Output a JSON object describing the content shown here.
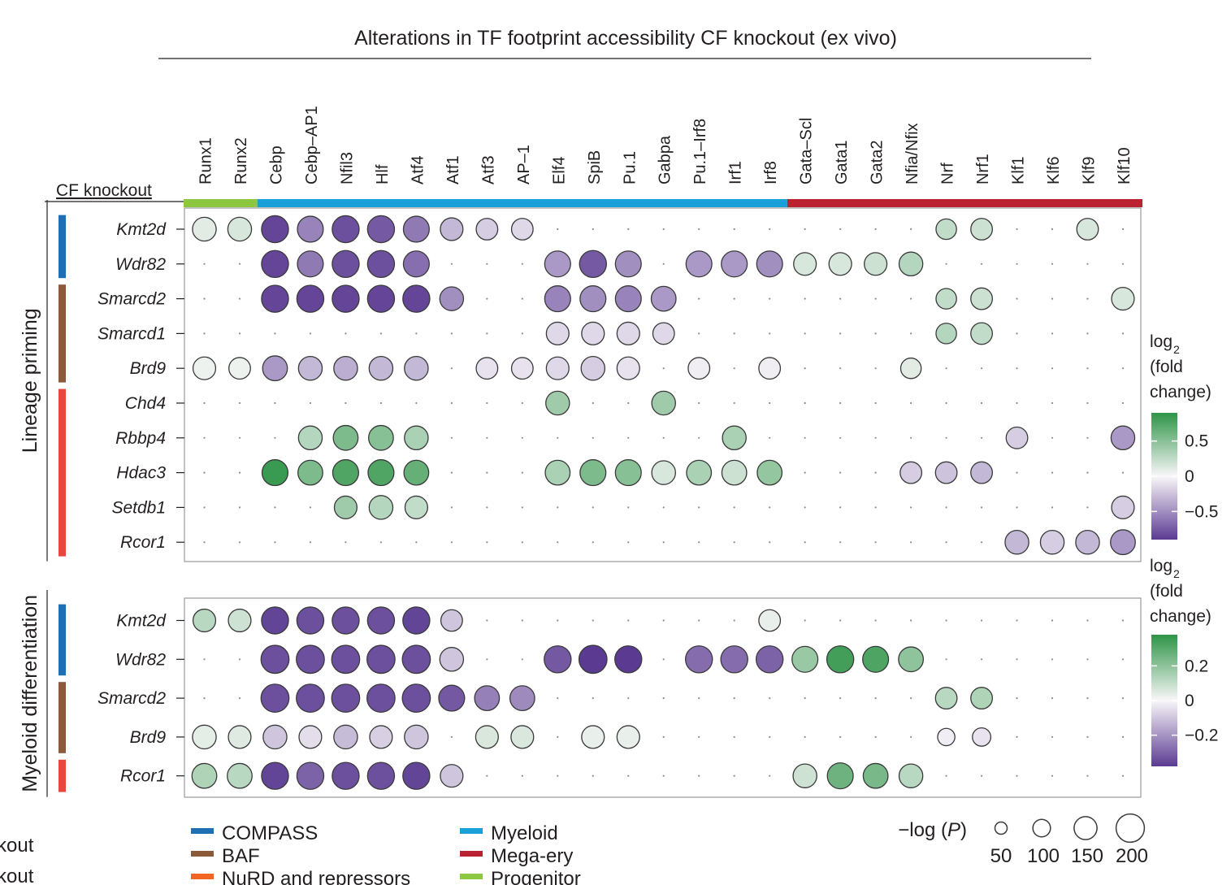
{
  "chart_data": {
    "type": "dot-heatmap",
    "title": "Alterations in TF footprint accessibility CF knockout (ex vivo)",
    "row_header": "CF knockout",
    "columns": [
      "Runx1",
      "Runx2",
      "Cebp",
      "Cebp–AP1",
      "Nfil3",
      "Hlf",
      "Atf4",
      "Atf1",
      "Atf3",
      "AP–1",
      "Elf4",
      "SpiB",
      "Pu.1",
      "Gabpa",
      "Pu.1–Irf8",
      "Irf1",
      "Irf8",
      "Gata–Scl",
      "Gata1",
      "Gata2",
      "Nfia/Nfix",
      "Nrf",
      "Nrf1",
      "Klf1",
      "Klf6",
      "Klf9",
      "Klf10"
    ],
    "column_groups": [
      {
        "name": "Progenitor",
        "count": 2,
        "color": "#8dc63f"
      },
      {
        "name": "Myeloid",
        "count": 15,
        "color": "#1aa0d8"
      },
      {
        "name": "Mega-ery",
        "count": 10,
        "color": "#bb2231"
      }
    ],
    "panels": [
      {
        "name": "Lineage priming",
        "rows": [
          "Kmt2d",
          "Wdr82",
          "Smarcd2",
          "Smarcd1",
          "Brd9",
          "Chd4",
          "Rbbp4",
          "Hdac3",
          "Setdb1",
          "Rcor1"
        ],
        "row_complex": [
          "COMPASS",
          "COMPASS",
          "BAF",
          "BAF",
          "BAF",
          "NuRD and repressors",
          "NuRD and repressors",
          "NuRD and repressors",
          "NuRD and repressors",
          "NuRD and repressors"
        ],
        "colorbar_label": [
          "log",
          "2",
          "(fold",
          "change)"
        ],
        "colorbar_ticks": [
          0.5,
          0,
          -0.5
        ],
        "colorbar_tick_labels": [
          "0.5",
          "0",
          "−0.5"
        ],
        "color_range": [
          -0.9,
          0.9
        ],
        "points": [
          [
            "Kmt2d",
            0,
            0.1,
            150
          ],
          [
            "Kmt2d",
            1,
            0.15,
            150
          ],
          [
            "Kmt2d",
            2,
            -0.85,
            180
          ],
          [
            "Kmt2d",
            3,
            -0.55,
            170
          ],
          [
            "Kmt2d",
            4,
            -0.8,
            180
          ],
          [
            "Kmt2d",
            5,
            -0.75,
            180
          ],
          [
            "Kmt2d",
            6,
            -0.6,
            170
          ],
          [
            "Kmt2d",
            7,
            -0.3,
            140
          ],
          [
            "Kmt2d",
            8,
            -0.2,
            130
          ],
          [
            "Kmt2d",
            9,
            -0.15,
            130
          ],
          [
            "Kmt2d",
            21,
            0.25,
            120
          ],
          [
            "Kmt2d",
            22,
            0.2,
            130
          ],
          [
            "Kmt2d",
            25,
            0.15,
            130
          ],
          [
            "Wdr82",
            2,
            -0.85,
            180
          ],
          [
            "Wdr82",
            3,
            -0.6,
            170
          ],
          [
            "Wdr82",
            4,
            -0.8,
            180
          ],
          [
            "Wdr82",
            5,
            -0.8,
            180
          ],
          [
            "Wdr82",
            6,
            -0.65,
            170
          ],
          [
            "Wdr82",
            10,
            -0.45,
            170
          ],
          [
            "Wdr82",
            11,
            -0.75,
            180
          ],
          [
            "Wdr82",
            12,
            -0.5,
            170
          ],
          [
            "Wdr82",
            14,
            -0.45,
            170
          ],
          [
            "Wdr82",
            15,
            -0.45,
            170
          ],
          [
            "Wdr82",
            16,
            -0.5,
            170
          ],
          [
            "Wdr82",
            17,
            0.15,
            140
          ],
          [
            "Wdr82",
            18,
            0.15,
            140
          ],
          [
            "Wdr82",
            19,
            0.2,
            140
          ],
          [
            "Wdr82",
            20,
            0.3,
            150
          ],
          [
            "Smarcd2",
            2,
            -0.85,
            180
          ],
          [
            "Smarcd2",
            3,
            -0.85,
            180
          ],
          [
            "Smarcd2",
            4,
            -0.85,
            180
          ],
          [
            "Smarcd2",
            5,
            -0.85,
            180
          ],
          [
            "Smarcd2",
            6,
            -0.85,
            180
          ],
          [
            "Smarcd2",
            7,
            -0.5,
            150
          ],
          [
            "Smarcd2",
            10,
            -0.55,
            170
          ],
          [
            "Smarcd2",
            11,
            -0.5,
            170
          ],
          [
            "Smarcd2",
            12,
            -0.55,
            170
          ],
          [
            "Smarcd2",
            13,
            -0.45,
            160
          ],
          [
            "Smarcd2",
            21,
            0.25,
            120
          ],
          [
            "Smarcd2",
            22,
            0.2,
            130
          ],
          [
            "Smarcd2",
            26,
            0.15,
            140
          ],
          [
            "Smarcd1",
            10,
            -0.15,
            140
          ],
          [
            "Smarcd1",
            11,
            -0.15,
            140
          ],
          [
            "Smarcd1",
            12,
            -0.15,
            140
          ],
          [
            "Smarcd1",
            13,
            -0.15,
            130
          ],
          [
            "Smarcd1",
            21,
            0.3,
            120
          ],
          [
            "Smarcd1",
            22,
            0.25,
            130
          ],
          [
            "Brd9",
            0,
            0.05,
            140
          ],
          [
            "Brd9",
            1,
            0.05,
            130
          ],
          [
            "Brd9",
            2,
            -0.45,
            160
          ],
          [
            "Brd9",
            3,
            -0.3,
            150
          ],
          [
            "Brd9",
            4,
            -0.35,
            150
          ],
          [
            "Brd9",
            5,
            -0.3,
            150
          ],
          [
            "Brd9",
            6,
            -0.3,
            150
          ],
          [
            "Brd9",
            8,
            -0.1,
            130
          ],
          [
            "Brd9",
            9,
            -0.1,
            130
          ],
          [
            "Brd9",
            10,
            -0.15,
            140
          ],
          [
            "Brd9",
            11,
            -0.2,
            150
          ],
          [
            "Brd9",
            12,
            -0.1,
            140
          ],
          [
            "Brd9",
            14,
            -0.05,
            130
          ],
          [
            "Brd9",
            16,
            -0.05,
            130
          ],
          [
            "Brd9",
            20,
            0.1,
            120
          ],
          [
            "Chd4",
            10,
            0.4,
            150
          ],
          [
            "Chd4",
            13,
            0.4,
            150
          ],
          [
            "Rbbp4",
            3,
            0.3,
            150
          ],
          [
            "Rbbp4",
            4,
            0.55,
            160
          ],
          [
            "Rbbp4",
            5,
            0.5,
            160
          ],
          [
            "Rbbp4",
            6,
            0.35,
            150
          ],
          [
            "Rbbp4",
            15,
            0.35,
            150
          ],
          [
            "Rbbp4",
            23,
            -0.2,
            130
          ],
          [
            "Rbbp4",
            26,
            -0.45,
            150
          ],
          [
            "Hdac3",
            2,
            0.85,
            170
          ],
          [
            "Hdac3",
            3,
            0.55,
            160
          ],
          [
            "Hdac3",
            4,
            0.75,
            170
          ],
          [
            "Hdac3",
            5,
            0.75,
            170
          ],
          [
            "Hdac3",
            6,
            0.65,
            160
          ],
          [
            "Hdac3",
            10,
            0.35,
            160
          ],
          [
            "Hdac3",
            11,
            0.55,
            170
          ],
          [
            "Hdac3",
            12,
            0.5,
            170
          ],
          [
            "Hdac3",
            13,
            0.15,
            150
          ],
          [
            "Hdac3",
            14,
            0.35,
            160
          ],
          [
            "Hdac3",
            15,
            0.2,
            160
          ],
          [
            "Hdac3",
            16,
            0.45,
            160
          ],
          [
            "Hdac3",
            20,
            -0.2,
            130
          ],
          [
            "Hdac3",
            21,
            -0.25,
            130
          ],
          [
            "Hdac3",
            22,
            -0.3,
            130
          ],
          [
            "Setdb1",
            4,
            0.4,
            140
          ],
          [
            "Setdb1",
            5,
            0.3,
            150
          ],
          [
            "Setdb1",
            6,
            0.25,
            140
          ],
          [
            "Setdb1",
            26,
            -0.2,
            140
          ],
          [
            "Rcor1",
            23,
            -0.3,
            150
          ],
          [
            "Rcor1",
            24,
            -0.2,
            150
          ],
          [
            "Rcor1",
            25,
            -0.3,
            150
          ],
          [
            "Rcor1",
            26,
            -0.45,
            160
          ]
        ]
      },
      {
        "name": "Myeloid differentiation",
        "rows": [
          "Kmt2d",
          "Wdr82",
          "Smarcd2",
          "Brd9",
          "Rcor1"
        ],
        "row_complex": [
          "COMPASS",
          "COMPASS",
          "BAF",
          "BAF",
          "NuRD and repressors"
        ],
        "colorbar_label": [
          "log",
          "2",
          "(fold",
          "change)"
        ],
        "colorbar_ticks": [
          0.2,
          0,
          -0.2
        ],
        "colorbar_tick_labels": [
          "0.2",
          "0",
          "−0.2"
        ],
        "color_range": [
          -0.38,
          0.38
        ],
        "points": [
          [
            "Kmt2d",
            0,
            0.12,
            140
          ],
          [
            "Kmt2d",
            1,
            0.08,
            140
          ],
          [
            "Kmt2d",
            2,
            -0.36,
            180
          ],
          [
            "Kmt2d",
            3,
            -0.34,
            180
          ],
          [
            "Kmt2d",
            4,
            -0.34,
            180
          ],
          [
            "Kmt2d",
            5,
            -0.34,
            180
          ],
          [
            "Kmt2d",
            6,
            -0.36,
            180
          ],
          [
            "Kmt2d",
            7,
            -0.1,
            130
          ],
          [
            "Kmt2d",
            16,
            0.03,
            130
          ],
          [
            "Wdr82",
            2,
            -0.34,
            190
          ],
          [
            "Wdr82",
            3,
            -0.34,
            190
          ],
          [
            "Wdr82",
            4,
            -0.34,
            190
          ],
          [
            "Wdr82",
            5,
            -0.34,
            190
          ],
          [
            "Wdr82",
            6,
            -0.34,
            190
          ],
          [
            "Wdr82",
            7,
            -0.1,
            150
          ],
          [
            "Wdr82",
            10,
            -0.32,
            180
          ],
          [
            "Wdr82",
            11,
            -0.38,
            190
          ],
          [
            "Wdr82",
            12,
            -0.38,
            180
          ],
          [
            "Wdr82",
            14,
            -0.28,
            180
          ],
          [
            "Wdr82",
            15,
            -0.28,
            180
          ],
          [
            "Wdr82",
            16,
            -0.3,
            180
          ],
          [
            "Wdr82",
            17,
            0.18,
            170
          ],
          [
            "Wdr82",
            18,
            0.34,
            180
          ],
          [
            "Wdr82",
            19,
            0.32,
            170
          ],
          [
            "Wdr82",
            20,
            0.2,
            160
          ],
          [
            "Smarcd2",
            2,
            -0.34,
            190
          ],
          [
            "Smarcd2",
            3,
            -0.34,
            190
          ],
          [
            "Smarcd2",
            4,
            -0.34,
            190
          ],
          [
            "Smarcd2",
            5,
            -0.34,
            190
          ],
          [
            "Smarcd2",
            6,
            -0.34,
            190
          ],
          [
            "Smarcd2",
            7,
            -0.32,
            170
          ],
          [
            "Smarcd2",
            8,
            -0.24,
            160
          ],
          [
            "Smarcd2",
            9,
            -0.22,
            160
          ],
          [
            "Smarcd2",
            21,
            0.12,
            130
          ],
          [
            "Smarcd2",
            22,
            0.14,
            130
          ],
          [
            "Brd9",
            0,
            0.04,
            150
          ],
          [
            "Brd9",
            1,
            0.05,
            140
          ],
          [
            "Brd9",
            2,
            -0.1,
            150
          ],
          [
            "Brd9",
            3,
            -0.05,
            140
          ],
          [
            "Brd9",
            4,
            -0.12,
            150
          ],
          [
            "Brd9",
            5,
            -0.08,
            140
          ],
          [
            "Brd9",
            6,
            -0.1,
            150
          ],
          [
            "Brd9",
            8,
            0.06,
            140
          ],
          [
            "Brd9",
            9,
            0.06,
            140
          ],
          [
            "Brd9",
            11,
            0.03,
            140
          ],
          [
            "Brd9",
            12,
            0.03,
            140
          ],
          [
            "Brd9",
            21,
            -0.02,
            90
          ],
          [
            "Brd9",
            22,
            -0.04,
            100
          ],
          [
            "Rcor1",
            0,
            0.14,
            160
          ],
          [
            "Rcor1",
            1,
            0.12,
            160
          ],
          [
            "Rcor1",
            2,
            -0.36,
            180
          ],
          [
            "Rcor1",
            3,
            -0.3,
            180
          ],
          [
            "Rcor1",
            4,
            -0.34,
            180
          ],
          [
            "Rcor1",
            5,
            -0.34,
            180
          ],
          [
            "Rcor1",
            6,
            -0.36,
            180
          ],
          [
            "Rcor1",
            7,
            -0.1,
            140
          ],
          [
            "Rcor1",
            17,
            0.08,
            150
          ],
          [
            "Rcor1",
            18,
            0.26,
            170
          ],
          [
            "Rcor1",
            19,
            0.24,
            160
          ],
          [
            "Rcor1",
            20,
            0.12,
            150
          ]
        ]
      }
    ],
    "complex_colors": {
      "COMPASS": "#1f6fb4",
      "BAF": "#8a5a3b",
      "NuRD and repressors": "#e8473f"
    },
    "legend_left": [
      {
        "label": "COMPASS",
        "color": "#1f6fb4"
      },
      {
        "label": "BAF",
        "color": "#8a5a3b"
      },
      {
        "label": "NuRD and repressors",
        "color": "#f26522"
      }
    ],
    "legend_right": [
      {
        "label": "Myeloid",
        "color": "#1aa0d8"
      },
      {
        "label": "Mega-ery",
        "color": "#bb2231"
      },
      {
        "label": "Progenitor",
        "color": "#8dc63f"
      }
    ],
    "size_legend": {
      "label": "−log (",
      "label_italic": "P",
      "label_close": ")",
      "values": [
        50,
        100,
        150,
        200
      ]
    },
    "cutoff_labels": [
      "kout",
      "kout"
    ]
  }
}
